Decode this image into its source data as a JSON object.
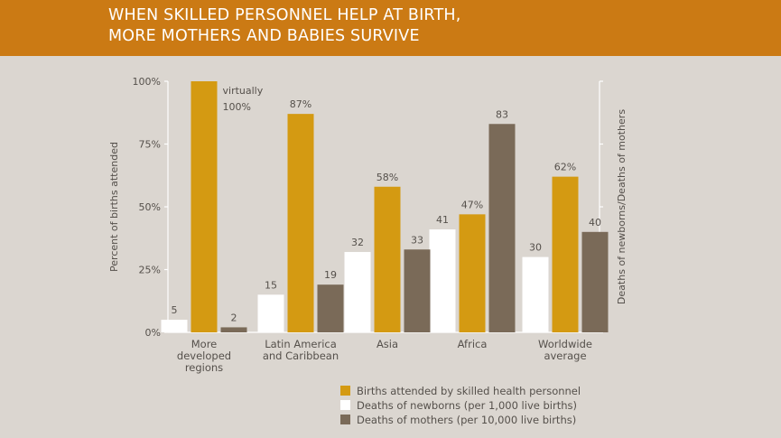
{
  "title_lines": [
    "WHEN SKILLED PERSONNEL HELP AT BIRTH,",
    "MORE MOTHERS AND BABIES SURVIVE"
  ],
  "colors": {
    "header_bg": "#cb7a14",
    "background": "#dbd6d0",
    "births_attended": "#d49a12",
    "newborn_deaths": "#ffffff",
    "mother_deaths": "#7a6a58"
  },
  "chart_data": {
    "type": "bar",
    "ylabel_left": "Percent of births attended",
    "ylabel_right": "Deaths of newborns/Deaths of mothers",
    "ylim": [
      0,
      100
    ],
    "yticks": [
      "0%",
      "25%",
      "50%",
      "75%",
      "100%"
    ],
    "categories": [
      [
        "More",
        "developed",
        "regions"
      ],
      [
        "Latin America",
        "and Caribbean"
      ],
      [
        "Asia"
      ],
      [
        "Africa"
      ],
      [
        "Worldwide",
        "average"
      ]
    ],
    "series": [
      {
        "name": "Deaths of newborns (per 1,000 live births)",
        "values": [
          5,
          15,
          32,
          41,
          30
        ],
        "labels": [
          "5",
          "15",
          "32",
          "41",
          "30"
        ]
      },
      {
        "name": "Births attended by skilled health personnel",
        "values": [
          100,
          87,
          58,
          47,
          62
        ],
        "labels": [
          [
            "virtually",
            "100%"
          ],
          "87%",
          "58%",
          "47%",
          "62%"
        ]
      },
      {
        "name": "Deaths of mothers (per 10,000 live births)",
        "values": [
          2,
          19,
          33,
          83,
          40
        ],
        "labels": [
          "2",
          "19",
          "33",
          "83",
          "40"
        ]
      }
    ],
    "legend_order": [
      1,
      0,
      2
    ],
    "legend_position": "bottom-right",
    "grid": false
  }
}
